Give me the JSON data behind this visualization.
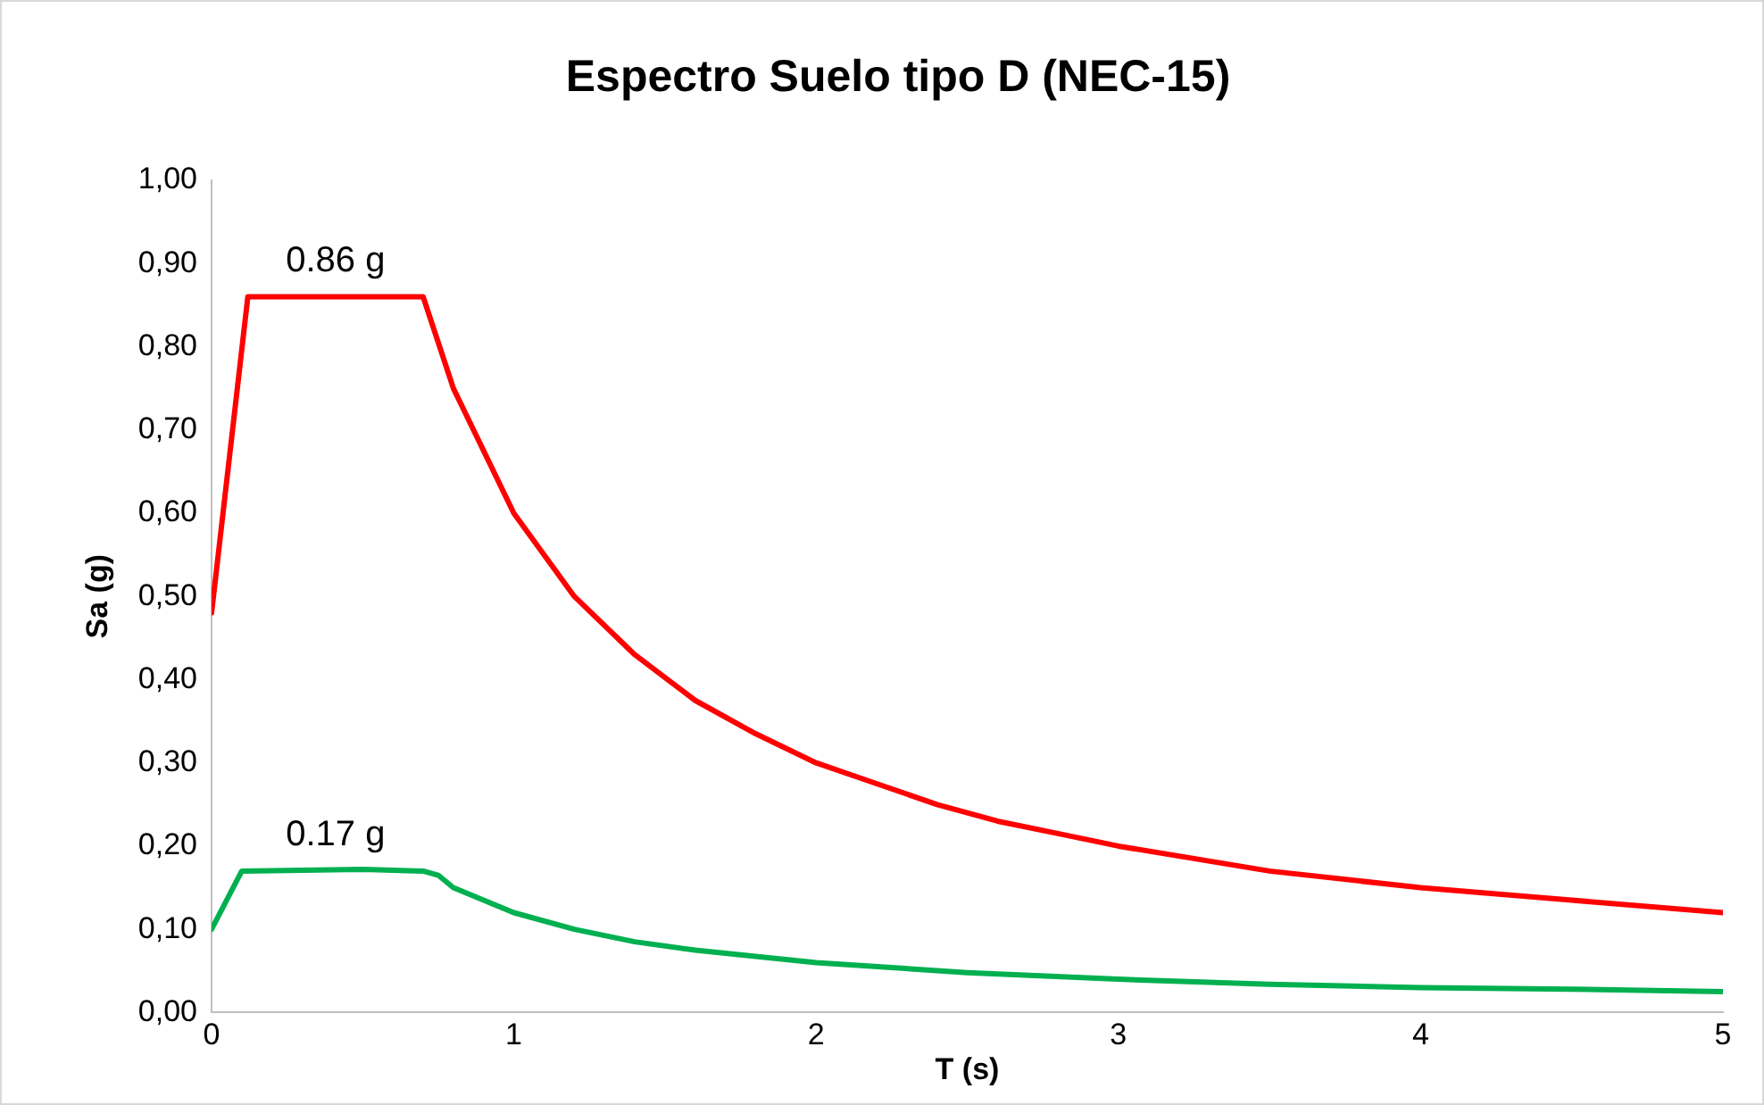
{
  "chart_data": {
    "type": "line",
    "title": "Espectro Suelo tipo D (NEC-15)",
    "xlabel": "T (s)",
    "ylabel": "Sa (g)",
    "xlim": [
      0,
      5
    ],
    "xticks": [
      0,
      1,
      2,
      3,
      4,
      5
    ],
    "ylim": [
      0,
      1
    ],
    "yticks": [
      {
        "value": 0,
        "label": "0,00"
      },
      {
        "value": 0.1,
        "label": "0,10"
      },
      {
        "value": 0.2,
        "label": "0,20"
      },
      {
        "value": 0.3,
        "label": "0,30"
      },
      {
        "value": 0.4,
        "label": "0,40"
      },
      {
        "value": 0.5,
        "label": "0,50"
      },
      {
        "value": 0.6,
        "label": "0,60"
      },
      {
        "value": 0.7,
        "label": "0,70"
      },
      {
        "value": 0.8,
        "label": "0,80"
      },
      {
        "value": 0.9,
        "label": "0,90"
      },
      {
        "value": 1,
        "label": "1,00"
      }
    ],
    "grid": false,
    "legend": false,
    "marker": "none",
    "line_style": "solid",
    "series": [
      {
        "color": "#ff0000",
        "x": [
          0,
          0.12,
          0.7,
          0.8,
          1.0,
          1.2,
          1.4,
          1.6,
          1.8,
          2.0,
          2.2,
          2.4,
          2.6,
          2.8,
          3.0,
          3.5,
          4.0,
          4.5,
          5.0
        ],
        "values": [
          0.48,
          0.86,
          0.86,
          0.75,
          0.6,
          0.5,
          0.43,
          0.375,
          0.335,
          0.3,
          0.275,
          0.25,
          0.23,
          0.215,
          0.2,
          0.17,
          0.15,
          0.135,
          0.12
        ]
      },
      {
        "color": "#00b050",
        "x": [
          0,
          0.1,
          0.5,
          0.7,
          0.75,
          0.8,
          1.0,
          1.2,
          1.4,
          1.6,
          2.0,
          2.5,
          3.0,
          3.5,
          4.0,
          4.5,
          5.0
        ],
        "values": [
          0.1,
          0.17,
          0.172,
          0.17,
          0.165,
          0.15,
          0.12,
          0.1,
          0.085,
          0.075,
          0.06,
          0.048,
          0.04,
          0.034,
          0.03,
          0.028,
          0.025
        ]
      }
    ],
    "annotations": [
      {
        "text": "0.86 g",
        "x": 0.41,
        "y": 0.86
      },
      {
        "text": "0.17 g",
        "x": 0.41,
        "y": 0.17
      }
    ]
  }
}
